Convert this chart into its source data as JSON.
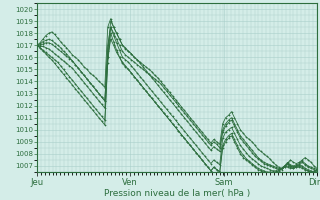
{
  "title": "",
  "xlabel": "Pression niveau de la mer( hPa )",
  "bg_color": "#d4ede8",
  "grid_color": "#aacfca",
  "line_color": "#2d6e3e",
  "ylim": [
    1006.5,
    1020.5
  ],
  "day_labels": [
    "Jeu",
    "Ven",
    "Sam",
    "Dim"
  ],
  "day_positions": [
    0,
    0.333,
    0.667,
    1.0
  ],
  "tick_color": "#2d6e3e",
  "spine_color": "#2d6e3e",
  "series": [
    [
      1017.0,
      1017.2,
      1017.5,
      1017.8,
      1018.0,
      1018.1,
      1017.9,
      1017.6,
      1017.3,
      1017.0,
      1016.8,
      1016.5,
      1016.2,
      1016.0,
      1015.8,
      1015.5,
      1015.2,
      1015.0,
      1014.7,
      1014.5,
      1014.3,
      1014.0,
      1013.8,
      1013.5,
      1018.5,
      1019.2,
      1018.5,
      1018.0,
      1017.5,
      1017.0,
      1016.8,
      1016.5,
      1016.3,
      1016.0,
      1015.8,
      1015.6,
      1015.4,
      1015.2,
      1015.0,
      1014.8,
      1014.5,
      1014.3,
      1014.0,
      1013.7,
      1013.4,
      1013.1,
      1012.8,
      1012.5,
      1012.2,
      1011.9,
      1011.6,
      1011.3,
      1011.0,
      1010.7,
      1010.4,
      1010.1,
      1009.8,
      1009.5,
      1009.2,
      1008.9,
      1009.2,
      1009.0,
      1008.8,
      1010.5,
      1011.0,
      1011.2,
      1011.5,
      1011.0,
      1010.5,
      1010.0,
      1009.7,
      1009.4,
      1009.2,
      1009.0,
      1008.7,
      1008.4,
      1008.2,
      1008.0,
      1007.8,
      1007.6,
      1007.3,
      1007.1,
      1006.9,
      1006.8,
      1006.9,
      1007.2,
      1007.5,
      1007.3,
      1007.2,
      1007.3,
      1007.5,
      1007.7,
      1007.5,
      1007.3,
      1007.0,
      1006.8
    ],
    [
      1017.0,
      1017.1,
      1017.3,
      1017.4,
      1017.5,
      1017.4,
      1017.2,
      1017.0,
      1016.8,
      1016.5,
      1016.3,
      1016.0,
      1015.7,
      1015.4,
      1015.1,
      1014.8,
      1014.5,
      1014.2,
      1013.9,
      1013.6,
      1013.3,
      1013.0,
      1012.7,
      1012.4,
      1017.0,
      1018.5,
      1018.0,
      1017.5,
      1017.0,
      1016.5,
      1016.2,
      1016.0,
      1015.8,
      1015.6,
      1015.4,
      1015.2,
      1015.0,
      1014.8,
      1014.6,
      1014.4,
      1014.2,
      1014.0,
      1013.8,
      1013.5,
      1013.2,
      1012.9,
      1012.6,
      1012.3,
      1012.0,
      1011.7,
      1011.4,
      1011.1,
      1010.8,
      1010.5,
      1010.2,
      1009.9,
      1009.6,
      1009.3,
      1009.0,
      1008.7,
      1009.0,
      1008.8,
      1008.5,
      1010.0,
      1010.5,
      1010.8,
      1011.0,
      1010.5,
      1010.0,
      1009.5,
      1009.2,
      1008.9,
      1008.6,
      1008.3,
      1008.0,
      1007.7,
      1007.5,
      1007.3,
      1007.2,
      1007.1,
      1007.0,
      1006.9,
      1006.8,
      1006.8,
      1007.0,
      1007.3,
      1007.1,
      1007.0,
      1007.1,
      1007.2,
      1007.4,
      1007.2,
      1007.0,
      1006.9,
      1006.8,
      1006.7
    ],
    [
      1017.0,
      1017.0,
      1017.1,
      1017.2,
      1017.2,
      1017.1,
      1016.9,
      1016.7,
      1016.5,
      1016.3,
      1016.1,
      1015.9,
      1015.7,
      1015.4,
      1015.1,
      1014.8,
      1014.5,
      1014.2,
      1013.9,
      1013.6,
      1013.3,
      1013.0,
      1012.7,
      1012.4,
      1016.5,
      1019.0,
      1018.5,
      1018.0,
      1017.5,
      1017.0,
      1016.7,
      1016.5,
      1016.3,
      1016.0,
      1015.8,
      1015.5,
      1015.2,
      1014.9,
      1014.6,
      1014.3,
      1014.0,
      1013.7,
      1013.4,
      1013.1,
      1012.8,
      1012.5,
      1012.2,
      1011.9,
      1011.6,
      1011.3,
      1011.0,
      1010.7,
      1010.4,
      1010.1,
      1009.8,
      1009.5,
      1009.2,
      1008.9,
      1008.6,
      1008.3,
      1008.6,
      1008.4,
      1008.2,
      1009.8,
      1010.3,
      1010.6,
      1010.8,
      1010.3,
      1009.8,
      1009.3,
      1009.0,
      1008.7,
      1008.4,
      1008.1,
      1007.8,
      1007.6,
      1007.4,
      1007.2,
      1007.1,
      1007.0,
      1006.9,
      1006.8,
      1006.7,
      1006.7,
      1006.9,
      1007.2,
      1007.0,
      1006.9,
      1007.0,
      1007.1,
      1007.3,
      1007.1,
      1006.9,
      1006.8,
      1006.7,
      1006.6
    ],
    [
      1017.0,
      1016.9,
      1016.9,
      1016.8,
      1016.7,
      1016.5,
      1016.3,
      1016.1,
      1015.9,
      1015.7,
      1015.5,
      1015.3,
      1015.1,
      1014.8,
      1014.5,
      1014.2,
      1013.9,
      1013.6,
      1013.3,
      1013.0,
      1012.7,
      1012.4,
      1012.1,
      1011.8,
      1016.0,
      1018.5,
      1017.8,
      1017.2,
      1016.6,
      1016.0,
      1015.8,
      1015.6,
      1015.3,
      1015.0,
      1014.7,
      1014.4,
      1014.1,
      1013.8,
      1013.5,
      1013.2,
      1012.9,
      1012.6,
      1012.3,
      1012.0,
      1011.7,
      1011.4,
      1011.1,
      1010.8,
      1010.5,
      1010.2,
      1009.9,
      1009.6,
      1009.3,
      1009.0,
      1008.7,
      1008.4,
      1008.1,
      1007.8,
      1007.5,
      1007.2,
      1007.5,
      1007.3,
      1007.1,
      1009.3,
      1009.8,
      1010.0,
      1010.2,
      1009.7,
      1009.2,
      1008.7,
      1008.4,
      1008.1,
      1007.8,
      1007.6,
      1007.4,
      1007.2,
      1007.0,
      1006.9,
      1006.8,
      1006.7,
      1006.6,
      1006.6,
      1006.7,
      1006.8,
      1007.0,
      1007.2,
      1007.0,
      1006.9,
      1007.0,
      1007.1,
      1007.0,
      1006.8,
      1006.7,
      1006.6,
      1006.5,
      1006.7
    ],
    [
      1017.0,
      1016.8,
      1016.6,
      1016.4,
      1016.2,
      1016.0,
      1015.8,
      1015.6,
      1015.3,
      1015.0,
      1014.7,
      1014.4,
      1014.1,
      1013.8,
      1013.5,
      1013.2,
      1012.9,
      1012.6,
      1012.3,
      1012.0,
      1011.7,
      1011.4,
      1011.1,
      1010.8,
      1015.5,
      1018.0,
      1017.3,
      1016.6,
      1016.0,
      1015.5,
      1015.2,
      1015.0,
      1014.7,
      1014.4,
      1014.1,
      1013.8,
      1013.5,
      1013.2,
      1012.9,
      1012.6,
      1012.3,
      1012.0,
      1011.7,
      1011.4,
      1011.1,
      1010.8,
      1010.5,
      1010.2,
      1009.9,
      1009.6,
      1009.3,
      1009.0,
      1008.7,
      1008.4,
      1008.1,
      1007.8,
      1007.5,
      1007.2,
      1006.9,
      1006.6,
      1006.9,
      1006.7,
      1006.5,
      1008.7,
      1009.2,
      1009.5,
      1009.7,
      1009.2,
      1008.7,
      1008.2,
      1007.9,
      1007.6,
      1007.4,
      1007.2,
      1007.0,
      1006.8,
      1006.7,
      1006.6,
      1006.5,
      1006.5,
      1006.5,
      1006.5,
      1006.6,
      1006.8,
      1007.0,
      1007.0,
      1006.9,
      1006.8,
      1006.9,
      1007.0,
      1006.9,
      1006.7,
      1006.6,
      1006.5,
      1006.5,
      1006.7
    ],
    [
      1017.0,
      1016.8,
      1016.5,
      1016.3,
      1016.0,
      1015.8,
      1015.5,
      1015.2,
      1014.9,
      1014.6,
      1014.3,
      1014.0,
      1013.7,
      1013.4,
      1013.1,
      1012.8,
      1012.5,
      1012.2,
      1011.9,
      1011.6,
      1011.3,
      1011.0,
      1010.7,
      1010.4,
      1016.0,
      1017.5,
      1017.0,
      1016.4,
      1016.0,
      1015.6,
      1015.3,
      1015.0,
      1014.7,
      1014.4,
      1014.1,
      1013.8,
      1013.5,
      1013.2,
      1012.9,
      1012.6,
      1012.3,
      1012.0,
      1011.7,
      1011.4,
      1011.1,
      1010.8,
      1010.5,
      1010.2,
      1009.9,
      1009.6,
      1009.3,
      1009.0,
      1008.7,
      1008.4,
      1008.1,
      1007.8,
      1007.5,
      1007.2,
      1006.9,
      1006.6,
      1006.9,
      1006.7,
      1006.5,
      1008.5,
      1009.0,
      1009.3,
      1009.5,
      1009.0,
      1008.5,
      1008.0,
      1007.7,
      1007.5,
      1007.3,
      1007.1,
      1006.9,
      1006.7,
      1006.6,
      1006.5,
      1006.4,
      1006.4,
      1006.4,
      1006.5,
      1006.6,
      1006.8,
      1007.0,
      1006.9,
      1006.8,
      1006.8,
      1006.9,
      1006.9,
      1006.8,
      1006.7,
      1006.6,
      1006.5,
      1006.5,
      1006.6
    ]
  ]
}
